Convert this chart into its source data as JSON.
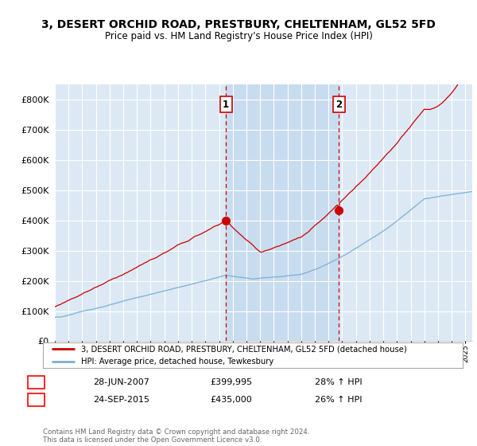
{
  "title": "3, DESERT ORCHID ROAD, PRESTBURY, CHELTENHAM, GL52 5FD",
  "subtitle": "Price paid vs. HM Land Registry's House Price Index (HPI)",
  "legend_line1": "3, DESERT ORCHID ROAD, PRESTBURY, CHELTENHAM, GL52 5FD (detached house)",
  "legend_line2": "HPI: Average price, detached house, Tewkesbury",
  "annotation1_label": "1",
  "annotation1_date": "28-JUN-2007",
  "annotation1_price": "£399,995",
  "annotation1_hpi": "28% ↑ HPI",
  "annotation2_label": "2",
  "annotation2_date": "24-SEP-2015",
  "annotation2_price": "£435,000",
  "annotation2_hpi": "26% ↑ HPI",
  "footer": "Contains HM Land Registry data © Crown copyright and database right 2024.\nThis data is licensed under the Open Government Licence v3.0.",
  "hpi_color": "#7bafd4",
  "price_color": "#cc0000",
  "marker1_x": 2007.5,
  "marker1_y": 399995,
  "marker2_x": 2015.75,
  "marker2_y": 435000,
  "vline1_x": 2007.5,
  "vline2_x": 2015.75,
  "ylim": [
    0,
    850000
  ],
  "xlim_start": 1995,
  "xlim_end": 2025.5,
  "background_color": "#dce9f5",
  "shade_color": "#c8dcf0",
  "plot_bg": "#ffffff",
  "yticks": [
    0,
    100000,
    200000,
    300000,
    400000,
    500000,
    600000,
    700000,
    800000
  ]
}
